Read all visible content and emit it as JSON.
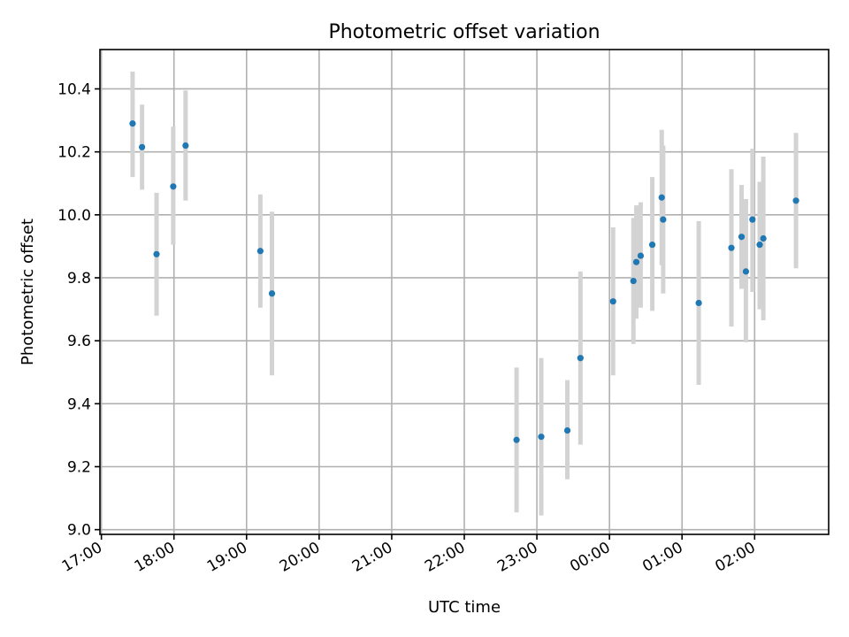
{
  "chart_data": {
    "type": "scatter",
    "title": "Photometric offset variation",
    "xlabel": "UTC time",
    "ylabel": "Photometric offset",
    "x_unit": "hours after 17:00 UTC",
    "xlim": [
      -0.02,
      10.02
    ],
    "ylim": [
      8.985,
      10.525
    ],
    "x_ticks": [
      {
        "value": 0,
        "label": "17:00"
      },
      {
        "value": 1,
        "label": "18:00"
      },
      {
        "value": 2,
        "label": "19:00"
      },
      {
        "value": 3,
        "label": "20:00"
      },
      {
        "value": 4,
        "label": "21:00"
      },
      {
        "value": 5,
        "label": "22:00"
      },
      {
        "value": 6,
        "label": "23:00"
      },
      {
        "value": 7,
        "label": "00:00"
      },
      {
        "value": 8,
        "label": "01:00"
      },
      {
        "value": 9,
        "label": "02:00"
      }
    ],
    "y_ticks": [
      {
        "value": 9.0,
        "label": "9.0"
      },
      {
        "value": 9.2,
        "label": "9.2"
      },
      {
        "value": 9.4,
        "label": "9.4"
      },
      {
        "value": 9.6,
        "label": "9.6"
      },
      {
        "value": 9.8,
        "label": "9.8"
      },
      {
        "value": 10.0,
        "label": "10.0"
      },
      {
        "value": 10.2,
        "label": "10.2"
      },
      {
        "value": 10.4,
        "label": "10.4"
      }
    ],
    "grid": true,
    "colors": {
      "point": "#1f77b4",
      "errorbar": "#d3d3d3"
    },
    "points": [
      {
        "x": 0.43,
        "y": 10.29,
        "ylow": 10.12,
        "yhigh": 10.455
      },
      {
        "x": 0.56,
        "y": 10.215,
        "ylow": 10.08,
        "yhigh": 10.35
      },
      {
        "x": 0.76,
        "y": 9.875,
        "ylow": 9.68,
        "yhigh": 10.07
      },
      {
        "x": 0.99,
        "y": 10.09,
        "ylow": 9.905,
        "yhigh": 10.28
      },
      {
        "x": 1.16,
        "y": 10.22,
        "ylow": 10.045,
        "yhigh": 10.395
      },
      {
        "x": 2.19,
        "y": 9.885,
        "ylow": 9.705,
        "yhigh": 10.065
      },
      {
        "x": 2.35,
        "y": 9.75,
        "ylow": 9.49,
        "yhigh": 10.01
      },
      {
        "x": 5.72,
        "y": 9.285,
        "ylow": 9.055,
        "yhigh": 9.515
      },
      {
        "x": 6.06,
        "y": 9.295,
        "ylow": 9.045,
        "yhigh": 9.545
      },
      {
        "x": 6.42,
        "y": 9.315,
        "ylow": 9.16,
        "yhigh": 9.475
      },
      {
        "x": 6.6,
        "y": 9.545,
        "ylow": 9.27,
        "yhigh": 9.82
      },
      {
        "x": 7.05,
        "y": 9.725,
        "ylow": 9.49,
        "yhigh": 9.96
      },
      {
        "x": 7.33,
        "y": 9.79,
        "ylow": 9.59,
        "yhigh": 9.99
      },
      {
        "x": 7.37,
        "y": 9.85,
        "ylow": 9.67,
        "yhigh": 10.03
      },
      {
        "x": 7.43,
        "y": 9.87,
        "ylow": 9.705,
        "yhigh": 10.04
      },
      {
        "x": 7.59,
        "y": 9.905,
        "ylow": 9.695,
        "yhigh": 10.12
      },
      {
        "x": 7.72,
        "y": 10.055,
        "ylow": 9.84,
        "yhigh": 10.27
      },
      {
        "x": 7.74,
        "y": 9.985,
        "ylow": 9.75,
        "yhigh": 10.22
      },
      {
        "x": 8.23,
        "y": 9.72,
        "ylow": 9.46,
        "yhigh": 9.98
      },
      {
        "x": 8.68,
        "y": 9.895,
        "ylow": 9.645,
        "yhigh": 10.145
      },
      {
        "x": 8.82,
        "y": 9.93,
        "ylow": 9.765,
        "yhigh": 10.095
      },
      {
        "x": 8.88,
        "y": 9.82,
        "ylow": 9.595,
        "yhigh": 10.05
      },
      {
        "x": 8.97,
        "y": 9.985,
        "ylow": 9.755,
        "yhigh": 10.21
      },
      {
        "x": 9.07,
        "y": 9.905,
        "ylow": 9.7,
        "yhigh": 10.105
      },
      {
        "x": 9.12,
        "y": 9.925,
        "ylow": 9.665,
        "yhigh": 10.185
      },
      {
        "x": 9.57,
        "y": 10.045,
        "ylow": 9.83,
        "yhigh": 10.26
      }
    ]
  }
}
